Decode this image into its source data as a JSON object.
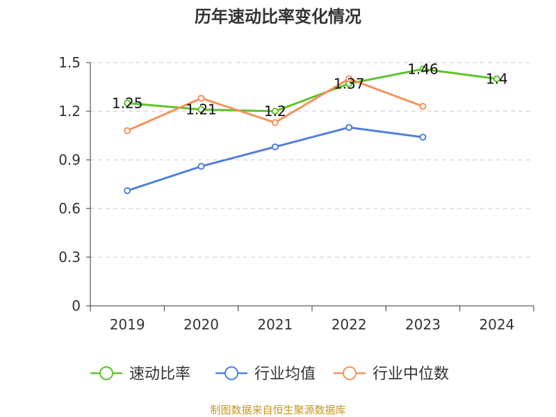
{
  "chart_data": {
    "type": "line",
    "title": "历年速动比率变化情况",
    "categories": [
      "2019",
      "2020",
      "2021",
      "2022",
      "2023",
      "2024"
    ],
    "y_ticks": [
      "0",
      "0.3",
      "0.6",
      "0.9",
      "1.2",
      "1.5"
    ],
    "ylim": [
      0,
      1.5
    ],
    "grid": true,
    "legend_position": "bottom",
    "series": [
      {
        "name": "速动比率",
        "color": "#5dc22a",
        "values": [
          1.25,
          1.21,
          1.2,
          1.37,
          1.46,
          1.4
        ],
        "labels": [
          "1.25",
          "1.21",
          "1.2",
          "1.37",
          "1.46",
          "1.4"
        ]
      },
      {
        "name": "行业均值",
        "color": "#4f7fdc",
        "values": [
          0.71,
          0.86,
          0.98,
          1.1,
          1.04,
          null
        ]
      },
      {
        "name": "行业中位数",
        "color": "#f5915a",
        "values": [
          1.08,
          1.28,
          1.13,
          1.4,
          1.23,
          null
        ]
      }
    ]
  },
  "footer": {
    "source": "制图数据来自恒生聚源数据库"
  }
}
